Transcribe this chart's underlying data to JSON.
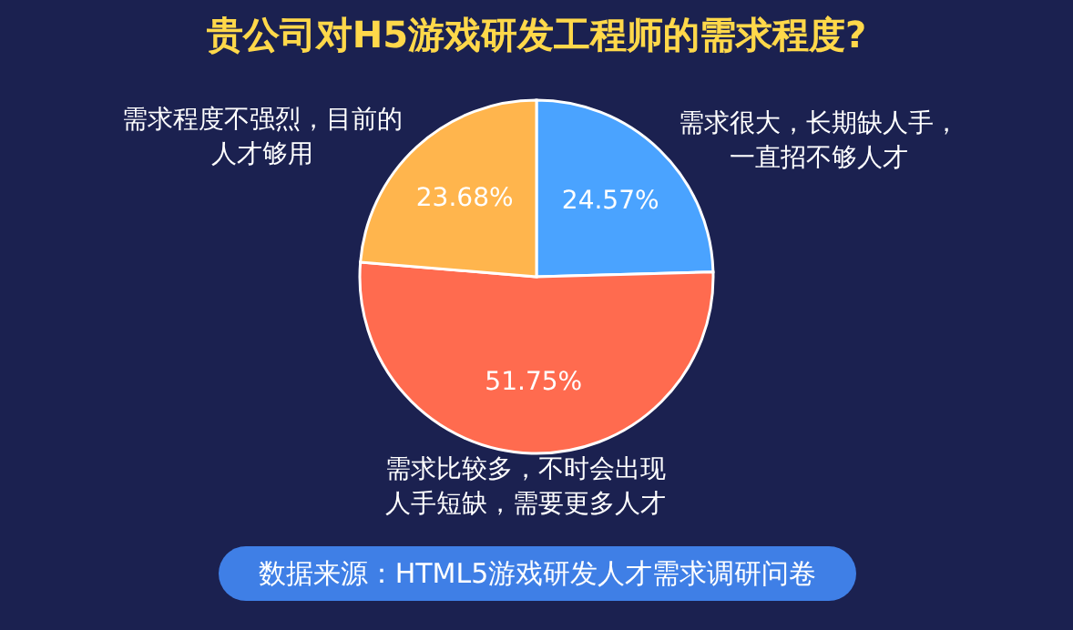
{
  "chart_data": {
    "type": "pie",
    "title": "贵公司对H5游戏研发工程师的需求程度?",
    "categories": [
      "需求很大，长期缺人手，一直招不够人才",
      "需求比较多，不时会出现人手短缺，需要更多人才",
      "需求程度不强烈，目前的人才够用"
    ],
    "values": [
      24.57,
      51.75,
      23.68
    ],
    "value_labels": [
      "24.57%",
      "51.75%",
      "23.68%"
    ],
    "colors": [
      "#4aa3ff",
      "#ff6b4f",
      "#ffb54d"
    ],
    "legend": false,
    "annotations": [
      "数据来源：HTML5游戏研发人才需求调研问卷"
    ]
  }
}
